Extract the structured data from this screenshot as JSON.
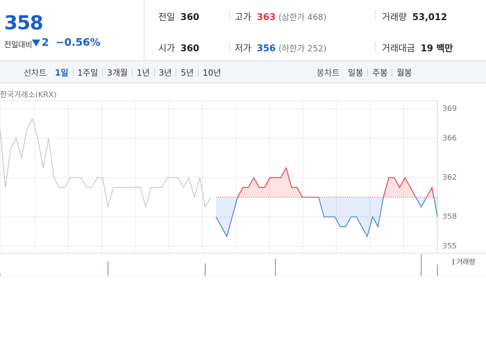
{
  "header": {
    "price": "358",
    "change_label": "전일대비",
    "change": "2",
    "change_rate": "−0.56%"
  },
  "stats": [
    {
      "label": "전일",
      "value": 360
    },
    {
      "label": "고가",
      "value": 363,
      "note": "(상한가 468)"
    },
    {
      "label": "거래량",
      "value": "53,012"
    },
    {
      "label": "시가",
      "value": 360
    },
    {
      "label": "저가",
      "value": 356,
      "note": "(하한가 252)"
    },
    {
      "label": "거래대금",
      "value": "19 백만"
    }
  ],
  "tabs": {
    "line_label": "선차트",
    "line_periods": [
      "1일",
      "1주일",
      "3개월",
      "1년",
      "3년",
      "5년",
      "10년"
    ],
    "candle_label": "봉차트",
    "candle_periods": [
      "일봉",
      "주봉",
      "월봉"
    ]
  },
  "chart_data": {
    "type": "line",
    "source": "한국거래소(KRX)",
    "ylim": [
      355,
      369
    ],
    "yticks": [
      369,
      366,
      362,
      358,
      355
    ],
    "series": [
      {
        "color": "#c8c8c8",
        "values": [
          367,
          361,
          365,
          366,
          364,
          367,
          368,
          366,
          363,
          366,
          362,
          361,
          361,
          362,
          362,
          362,
          361,
          361,
          362,
          362,
          359,
          361,
          361,
          361,
          361,
          361,
          361,
          359,
          361,
          361,
          361,
          362,
          362,
          362,
          361,
          362,
          360,
          362,
          359,
          360
        ]
      },
      {
        "color": "#e8343a",
        "color_down": "#3d7fd6",
        "values": [
          358,
          357,
          356,
          358,
          360,
          361,
          361,
          362,
          361,
          361,
          362,
          362,
          362,
          363,
          361,
          361,
          360,
          360,
          360,
          360,
          358,
          358,
          358,
          357,
          357,
          358,
          358,
          357,
          356,
          358,
          357,
          360,
          362,
          362,
          361,
          362,
          361,
          360,
          359,
          360,
          361,
          358
        ]
      }
    ],
    "volume": {
      "label": "거래량",
      "color": "#9a7fd1",
      "values": [
        5,
        0,
        0,
        0,
        0,
        0,
        0,
        0,
        0,
        0,
        0,
        0,
        0,
        0,
        0,
        0,
        0,
        0,
        0,
        0,
        25,
        0,
        0,
        0,
        0,
        0,
        0,
        0,
        0,
        0,
        0,
        0,
        0,
        0,
        0,
        0,
        0,
        0,
        22,
        0,
        0,
        0,
        0,
        0,
        0,
        0,
        0,
        0,
        0,
        0,
        0,
        30,
        0,
        0,
        0,
        0,
        0,
        0,
        0,
        0,
        0,
        0,
        0,
        0,
        0,
        0,
        0,
        0,
        0,
        0,
        0,
        0,
        0,
        0,
        0,
        0,
        0,
        0,
        38,
        0,
        0,
        20
      ]
    }
  }
}
